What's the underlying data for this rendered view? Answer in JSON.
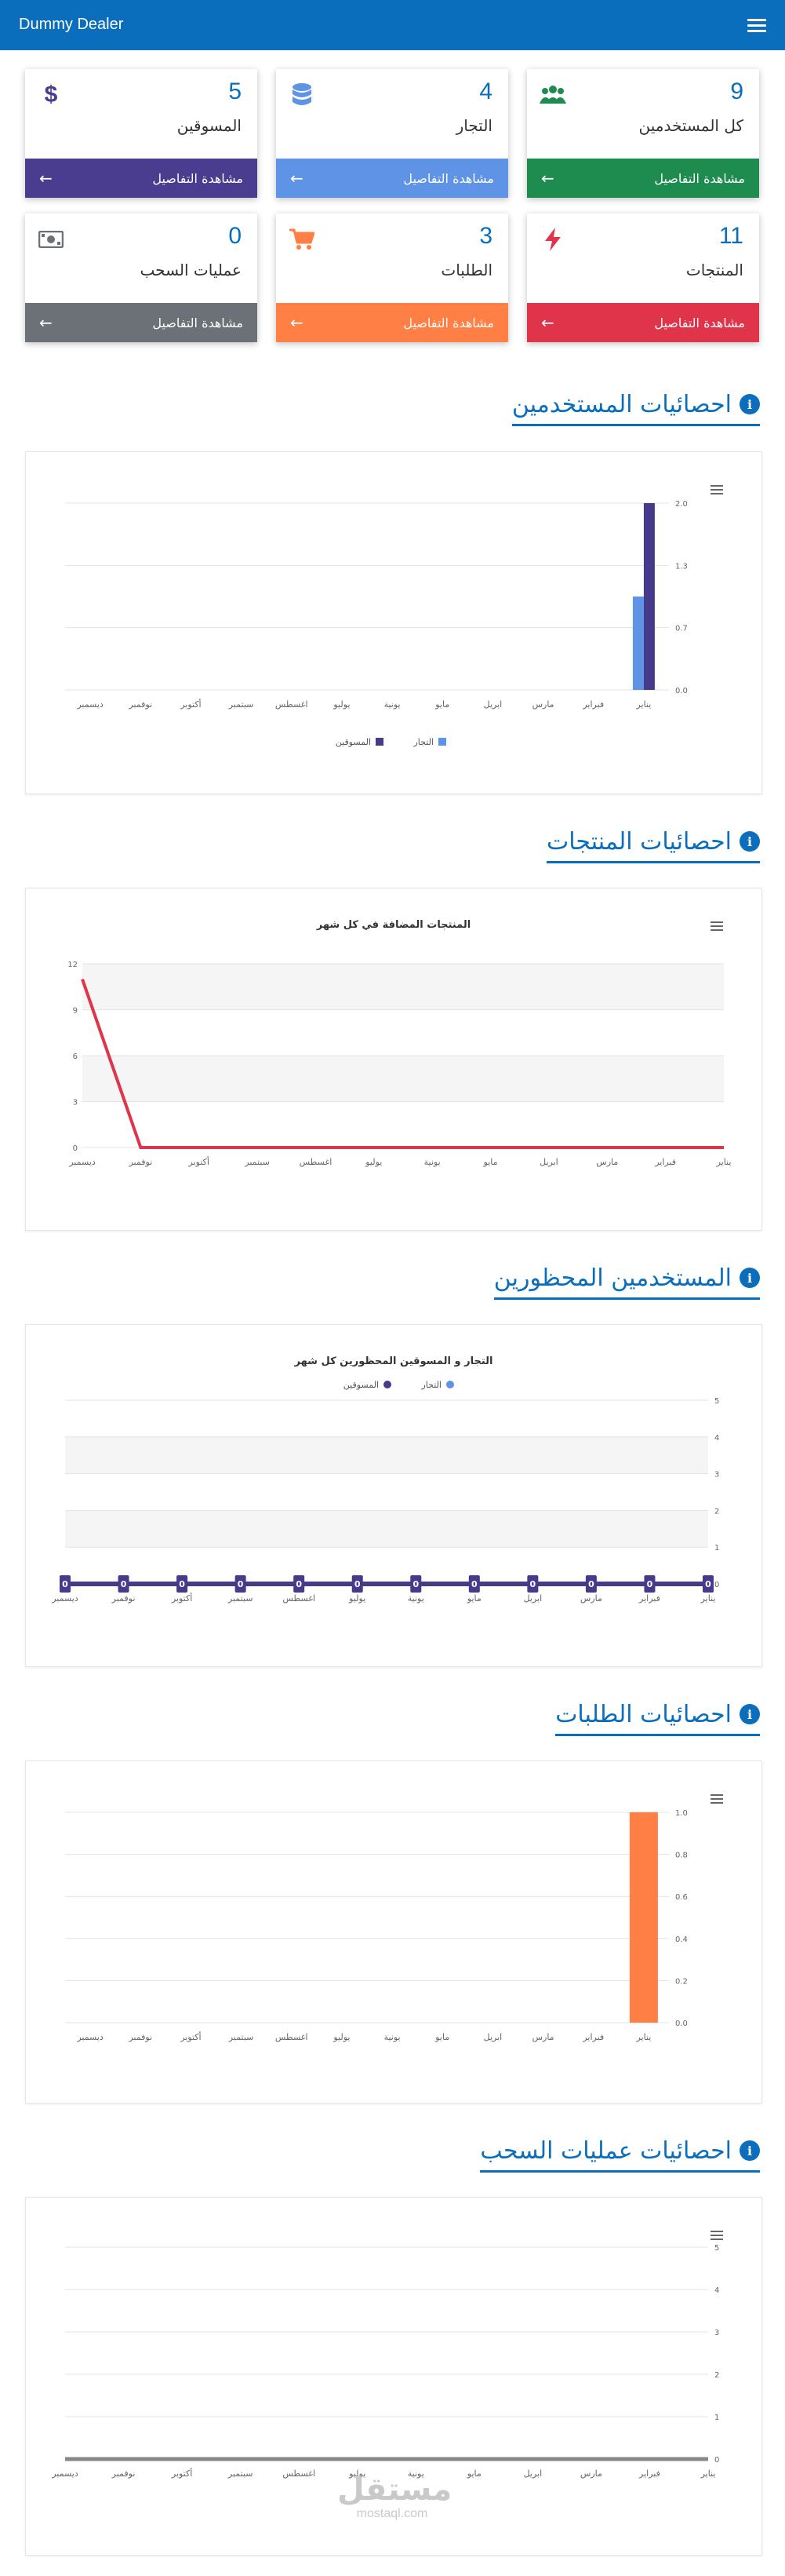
{
  "nav": {
    "brand": "Dummy Dealer"
  },
  "details_label": "مشاهدة التفاصيل",
  "cards": [
    {
      "key": "users",
      "value": "9",
      "label": "كل المستخدمين",
      "icon": "users-icon",
      "color": "#1e8b4f"
    },
    {
      "key": "merchants",
      "value": "4",
      "label": "التجار",
      "icon": "database-icon",
      "color": "#5e93e6"
    },
    {
      "key": "marketers",
      "value": "5",
      "label": "المسوقين",
      "icon": "dollar-icon",
      "color": "#4a3d8f"
    },
    {
      "key": "products",
      "value": "11",
      "label": "المنتجات",
      "icon": "bolt-icon",
      "color": "#e0344a"
    },
    {
      "key": "orders",
      "value": "3",
      "label": "الطلبات",
      "icon": "cart-icon",
      "color": "#ff7f45"
    },
    {
      "key": "withdrawals",
      "value": "0",
      "label": "عمليات السحب",
      "icon": "money-icon",
      "color": "#6b7177"
    }
  ],
  "sections": {
    "users": "احصائيات المستخدمين",
    "products": "احصائيات المنتجات",
    "banned": "المستخدمين المحظورين",
    "orders": "احصائيات الطلبات",
    "withdrawals": "احصائيات عمليات السحب"
  },
  "months": [
    "يناير",
    "فبراير",
    "مارس",
    "ابريل",
    "مايو",
    "يونية",
    "يوليو",
    "اغسطس",
    "سبتمبر",
    "أكتوبر",
    "نوفمبر",
    "ديسمبر"
  ],
  "chart_data": [
    {
      "type": "bar",
      "categories": [
        "يناير",
        "فبراير",
        "مارس",
        "ابريل",
        "مايو",
        "يونية",
        "يوليو",
        "اغسطس",
        "سبتمبر",
        "أكتوبر",
        "نوفمبر",
        "ديسمبر"
      ],
      "series": [
        {
          "name": "التجار",
          "color": "#5e93e6",
          "values": [
            1,
            0,
            0,
            0,
            0,
            0,
            0,
            0,
            0,
            0,
            0,
            0
          ]
        },
        {
          "name": "المسوقين",
          "color": "#453a8c",
          "values": [
            2,
            0,
            0,
            0,
            0,
            0,
            0,
            0,
            0,
            0,
            0,
            0
          ]
        }
      ],
      "yticks": [
        "0.0",
        "0.7",
        "1.3",
        "2.0"
      ],
      "ylim": [
        0,
        2
      ],
      "legend": "bottom"
    },
    {
      "type": "line",
      "title": "المنتجات المضافة في كل شهر",
      "categories": [
        "يناير",
        "فبراير",
        "مارس",
        "ابريل",
        "مايو",
        "يونية",
        "يوليو",
        "اغسطس",
        "سبتمبر",
        "أكتوبر",
        "نوفمبر",
        "ديسمبر"
      ],
      "series": [
        {
          "color": "#e0344a",
          "values": [
            0,
            0,
            0,
            0,
            0,
            0,
            0,
            0,
            0,
            0,
            0,
            11
          ]
        }
      ],
      "yticks": [
        "0",
        "3",
        "6",
        "9",
        "12"
      ],
      "ylim": [
        0,
        12
      ]
    },
    {
      "type": "line",
      "title": "التجار و المسوقين المحظورين كل شهر",
      "categories": [
        "يناير",
        "فبراير",
        "مارس",
        "ابريل",
        "مايو",
        "يونية",
        "يوليو",
        "اغسطس",
        "سبتمبر",
        "أكتوبر",
        "نوفمبر",
        "ديسمبر"
      ],
      "series": [
        {
          "name": "التجار",
          "color": "#5e93e6",
          "values": [
            0,
            0,
            0,
            0,
            0,
            0,
            0,
            0,
            0,
            0,
            0,
            0
          ]
        },
        {
          "name": "المسوقين",
          "color": "#453a8c",
          "values": [
            0,
            0,
            0,
            0,
            0,
            0,
            0,
            0,
            0,
            0,
            0,
            0
          ]
        }
      ],
      "data_labels": [
        "0",
        "0",
        "0",
        "0",
        "0",
        "0",
        "0",
        "0",
        "0",
        "0",
        "0",
        "0"
      ],
      "yticks": [
        "0",
        "1",
        "2",
        "3",
        "4",
        "5"
      ],
      "ylim": [
        0,
        5
      ],
      "legend": "top"
    },
    {
      "type": "bar",
      "categories": [
        "يناير",
        "فبراير",
        "مارس",
        "ابريل",
        "مايو",
        "يونية",
        "يوليو",
        "اغسطس",
        "سبتمبر",
        "أكتوبر",
        "نوفمبر",
        "ديسمبر"
      ],
      "series": [
        {
          "color": "#ff7f45",
          "values": [
            1,
            0,
            0,
            0,
            0,
            0,
            0,
            0,
            0,
            0,
            0,
            0
          ]
        }
      ],
      "yticks": [
        "0.0",
        "0.2",
        "0.4",
        "0.6",
        "0.8",
        "1.0"
      ],
      "ylim": [
        0,
        1
      ]
    },
    {
      "type": "line",
      "categories": [
        "يناير",
        "فبراير",
        "مارس",
        "ابريل",
        "مايو",
        "يونية",
        "يوليو",
        "اغسطس",
        "سبتمبر",
        "أكتوبر",
        "نوفمبر",
        "ديسمبر"
      ],
      "series": [
        {
          "color": "#888888",
          "values": [
            0,
            0,
            0,
            0,
            0,
            0,
            0,
            0,
            0,
            0,
            0,
            0
          ]
        }
      ],
      "yticks": [
        "0",
        "1",
        "2",
        "3",
        "4",
        "5"
      ],
      "ylim": [
        0,
        5
      ]
    }
  ],
  "watermark": {
    "text": "مستقل",
    "sub": "mostaql.com"
  }
}
